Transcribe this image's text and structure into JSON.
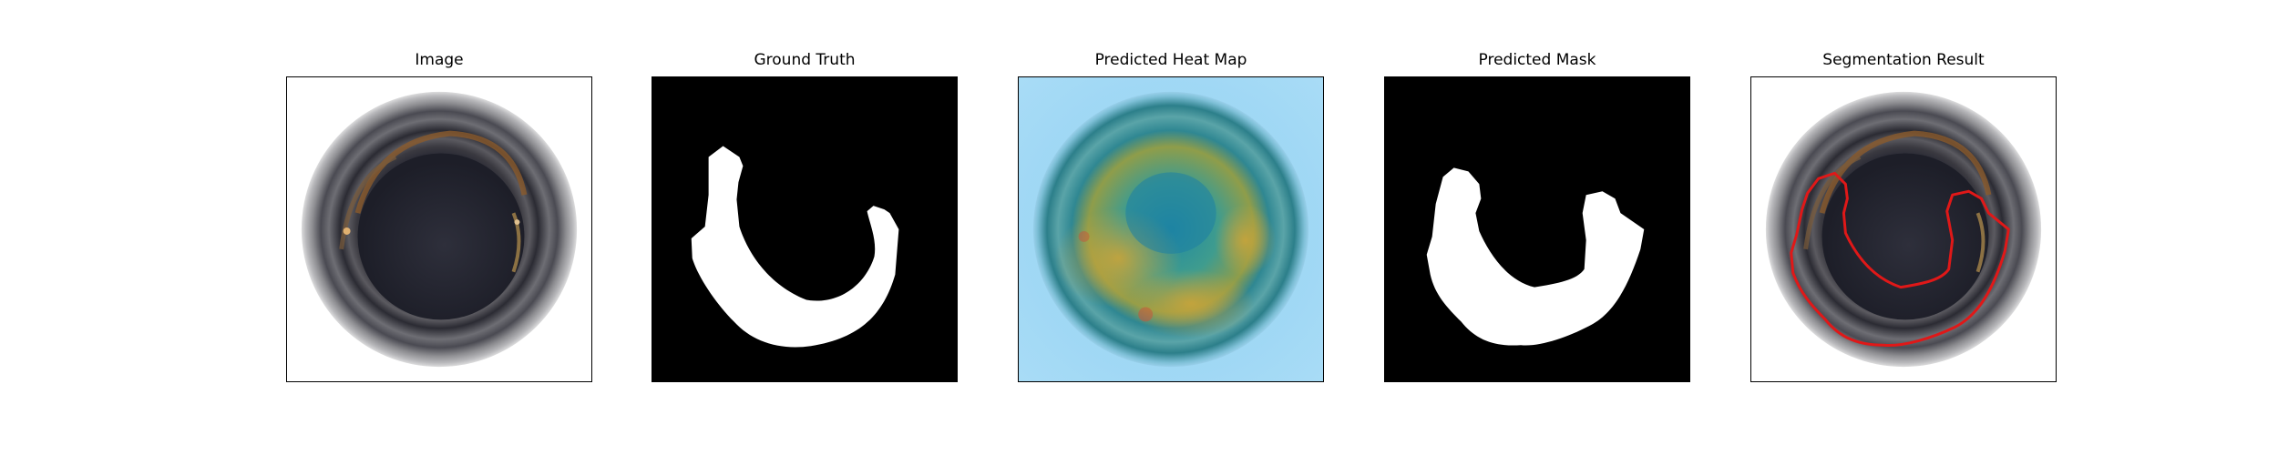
{
  "figure": {
    "panels": [
      {
        "title": "Image",
        "content": "bottle-bottom-photo"
      },
      {
        "title": "Ground Truth",
        "content": "ground-truth-mask"
      },
      {
        "title": "Predicted Heat Map",
        "content": "heat-map-overlay"
      },
      {
        "title": "Predicted Mask",
        "content": "predicted-mask"
      },
      {
        "title": "Segmentation Result",
        "content": "contour-overlay"
      }
    ],
    "colors": {
      "mask_background": "#000000",
      "mask_foreground": "#ffffff",
      "contour": "#e01818",
      "heat_low": "#8fd0f2",
      "heat_high": "#c9a43a"
    }
  }
}
